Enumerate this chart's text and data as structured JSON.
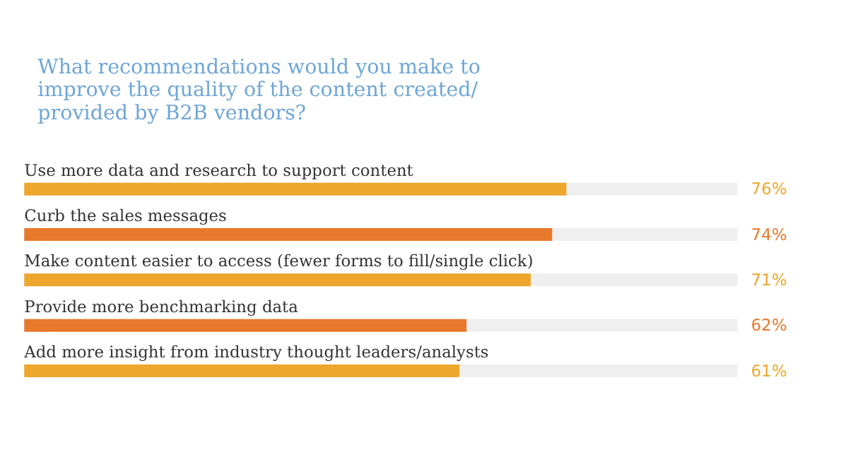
{
  "chart_data": {
    "type": "bar",
    "orientation": "horizontal",
    "title": [
      "What recommendations would you make to",
      "improve the quality of the content created/",
      "provided by B2B vendors?"
    ],
    "categories": [
      "Use more data and research to support content",
      "Curb the sales messages",
      "Make content easier to access (fewer forms to fill/single click)",
      "Provide more benchmarking data",
      "Add more insight from industry thought leaders/analysts"
    ],
    "values": [
      76,
      74,
      71,
      62,
      61
    ],
    "value_labels": [
      "76%",
      "74%",
      "71%",
      "62%",
      "61%"
    ],
    "colors": [
      "#eca72c",
      "#e8782b",
      "#eca72c",
      "#e8782b",
      "#eca72c"
    ],
    "xlim": [
      0,
      100
    ],
    "tick_labels": false
  }
}
